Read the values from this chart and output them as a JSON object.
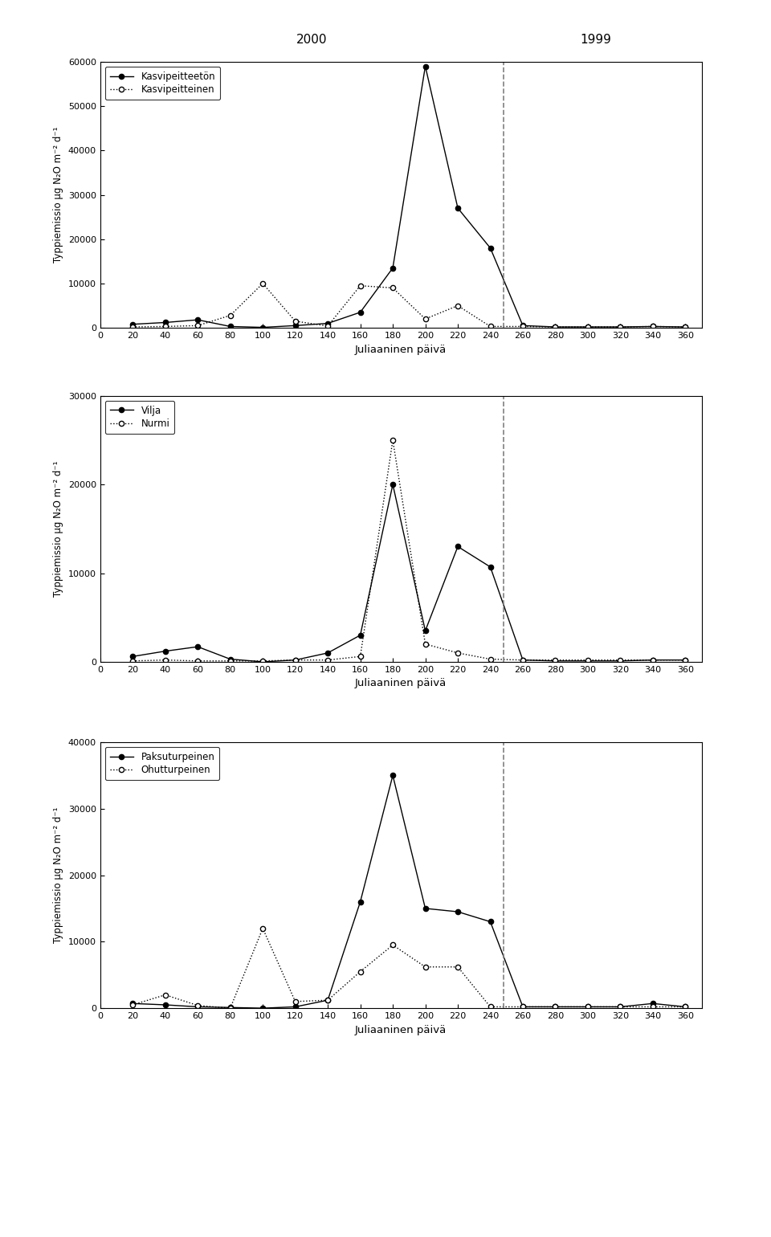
{
  "chart1": {
    "legend1": "Kasvipeitteetön",
    "legend2": "Kasvipeitteinen",
    "series1_x": [
      20,
      40,
      60,
      80,
      100,
      120,
      140,
      160,
      180,
      200,
      220,
      240,
      260,
      280,
      300,
      320,
      340,
      360
    ],
    "series1_y": [
      800,
      1200,
      1800,
      300,
      100,
      500,
      1000,
      3500,
      13500,
      59000,
      27000,
      18000,
      500,
      200,
      200,
      200,
      300,
      200
    ],
    "series2_x": [
      20,
      40,
      60,
      80,
      100,
      120,
      140,
      160,
      180,
      200,
      220,
      240,
      260,
      280,
      300,
      320,
      340,
      360
    ],
    "series2_y": [
      200,
      300,
      500,
      2800,
      10000,
      1500,
      400,
      9500,
      9000,
      2000,
      5000,
      300,
      300,
      200,
      200,
      200,
      300,
      200
    ],
    "ylim": [
      0,
      60000
    ],
    "yticks": [
      0,
      10000,
      20000,
      30000,
      40000,
      50000,
      60000
    ],
    "dashed_x": 248,
    "ylabel": "Typpiemissio μg N₂O m⁻² d⁻¹"
  },
  "chart2": {
    "legend1": "Vilja",
    "legend2": "Nurmi",
    "series1_x": [
      20,
      40,
      60,
      80,
      100,
      120,
      140,
      160,
      180,
      200,
      220,
      240,
      260,
      280,
      300,
      320,
      340,
      360
    ],
    "series1_y": [
      600,
      1200,
      1700,
      300,
      0,
      200,
      1000,
      3000,
      20000,
      3500,
      13000,
      10700,
      200,
      100,
      100,
      100,
      200,
      200
    ],
    "series2_x": [
      20,
      40,
      60,
      80,
      100,
      120,
      140,
      160,
      180,
      200,
      220,
      240,
      260,
      280,
      300,
      320,
      340,
      360
    ],
    "series2_y": [
      100,
      200,
      100,
      100,
      100,
      200,
      200,
      600,
      25000,
      2000,
      1000,
      300,
      200,
      200,
      200,
      200,
      200,
      200
    ],
    "ylim": [
      0,
      30000
    ],
    "yticks": [
      0,
      10000,
      20000,
      30000
    ],
    "dashed_x": 248,
    "ylabel": "Typpiemissio μg N₂O m⁻² d⁻¹"
  },
  "chart3": {
    "legend1": "Paksuturpeinen",
    "legend2": "Ohutturpeinen",
    "series1_x": [
      20,
      40,
      60,
      80,
      100,
      120,
      140,
      160,
      180,
      200,
      220,
      240,
      260,
      280,
      300,
      320,
      340,
      360
    ],
    "series1_y": [
      700,
      500,
      200,
      100,
      0,
      200,
      1200,
      16000,
      35000,
      15000,
      14500,
      13000,
      200,
      200,
      200,
      200,
      700,
      200
    ],
    "series2_x": [
      20,
      40,
      60,
      80,
      100,
      120,
      140,
      160,
      180,
      200,
      220,
      240,
      260,
      280,
      300,
      320,
      340,
      360
    ],
    "series2_y": [
      500,
      2000,
      400,
      0,
      12000,
      1000,
      1200,
      5500,
      9500,
      6200,
      6200,
      200,
      200,
      200,
      200,
      200,
      200,
      200
    ],
    "ylim": [
      0,
      40000
    ],
    "yticks": [
      0,
      10000,
      20000,
      30000,
      40000
    ],
    "dashed_x": 248,
    "ylabel": "Typpiemissio μg N₂O m⁻² d⁻¹"
  },
  "xlabel": "Juliaaninen päivä",
  "xticks": [
    0,
    20,
    40,
    60,
    80,
    100,
    120,
    140,
    160,
    180,
    200,
    220,
    240,
    260,
    280,
    300,
    320,
    340,
    360
  ],
  "xlim": [
    0,
    370
  ],
  "year_2000_label": "2000",
  "year_2000_x": 130,
  "year_1999_label": "1999",
  "year_1999_x": 305,
  "bg_color": "#ffffff"
}
